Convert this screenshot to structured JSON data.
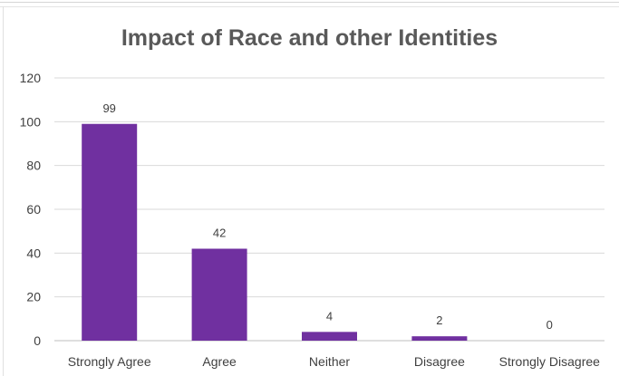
{
  "chart_data": {
    "type": "bar",
    "title": "Impact of Race and other Identities",
    "categories": [
      "Strongly Agree",
      "Agree",
      "Neither",
      "Disagree",
      "Strongly Disagree"
    ],
    "values": [
      99,
      42,
      4,
      2,
      0
    ],
    "data_labels": [
      "99",
      "42",
      "4",
      "2",
      "0"
    ],
    "ylim": [
      0,
      120
    ],
    "yticks": [
      0,
      20,
      40,
      60,
      80,
      100,
      120
    ],
    "xlabel": "",
    "ylabel": "",
    "grid": true,
    "bar_color": "#7030a0",
    "gridline_color": "#d9d9d9"
  }
}
